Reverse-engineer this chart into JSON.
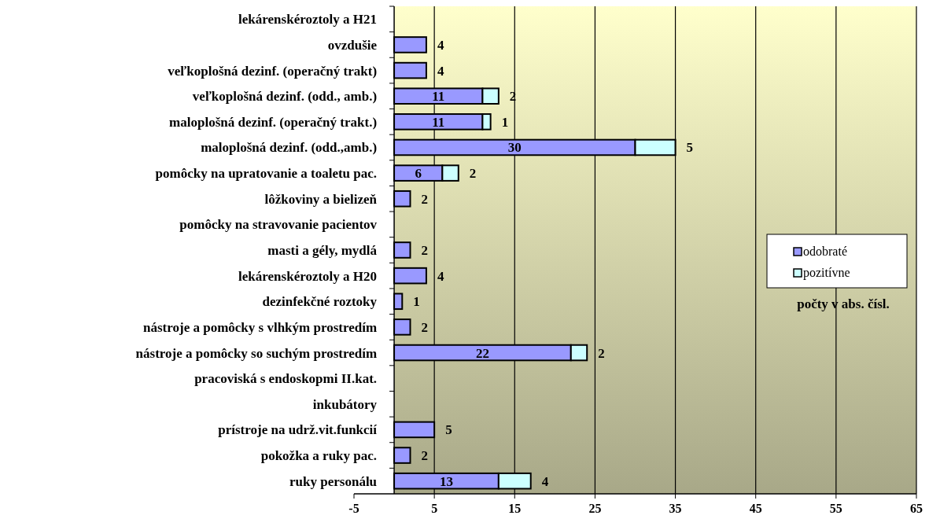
{
  "chart_data": {
    "type": "bar",
    "orientation": "horizontal",
    "stacked": true,
    "categories": [
      "lekárenskéroztoly a H21",
      "ovzdušie",
      "veľkoplošná dezinf. (operačný trakt)",
      "veľkoplošná dezinf. (odd., amb.)",
      "maloplošná dezinf. (operačný trakt.)",
      "maloplošná dezinf. (odd.,amb.)",
      "pomôcky na upratovanie a toaletu pac.",
      "lôžkoviny a bielizeň",
      "pomôcky na stravovanie pacientov",
      "masti a gély, mydlá",
      "lekárenskéroztoly a H20",
      "dezinfekčné roztoky",
      "nástroje a pomôcky s vlhkým prostredím",
      "nástroje a pomôcky so suchým prostredím",
      "pracoviská s endoskopmi II.kat.",
      "inkubátory",
      "prístroje na udrž.vit.funkcií",
      "pokožka a ruky pac.",
      "ruky personálu"
    ],
    "series": [
      {
        "name": "odobraté",
        "color": "#9999ff",
        "values": [
          null,
          4,
          4,
          11,
          11,
          30,
          6,
          2,
          null,
          2,
          4,
          1,
          2,
          22,
          null,
          null,
          5,
          2,
          13
        ]
      },
      {
        "name": "pozitívne",
        "color": "#ccffff",
        "values": [
          null,
          null,
          null,
          2,
          1,
          5,
          2,
          null,
          null,
          null,
          null,
          null,
          null,
          2,
          null,
          null,
          null,
          null,
          4
        ]
      }
    ],
    "xlim": [
      -5,
      65
    ],
    "xticks": [
      -5,
      5,
      15,
      25,
      35,
      45,
      55,
      65
    ],
    "grid": "x",
    "legend": "right",
    "data_labels": true,
    "annotations": [
      "počty v abs. čísl."
    ]
  }
}
